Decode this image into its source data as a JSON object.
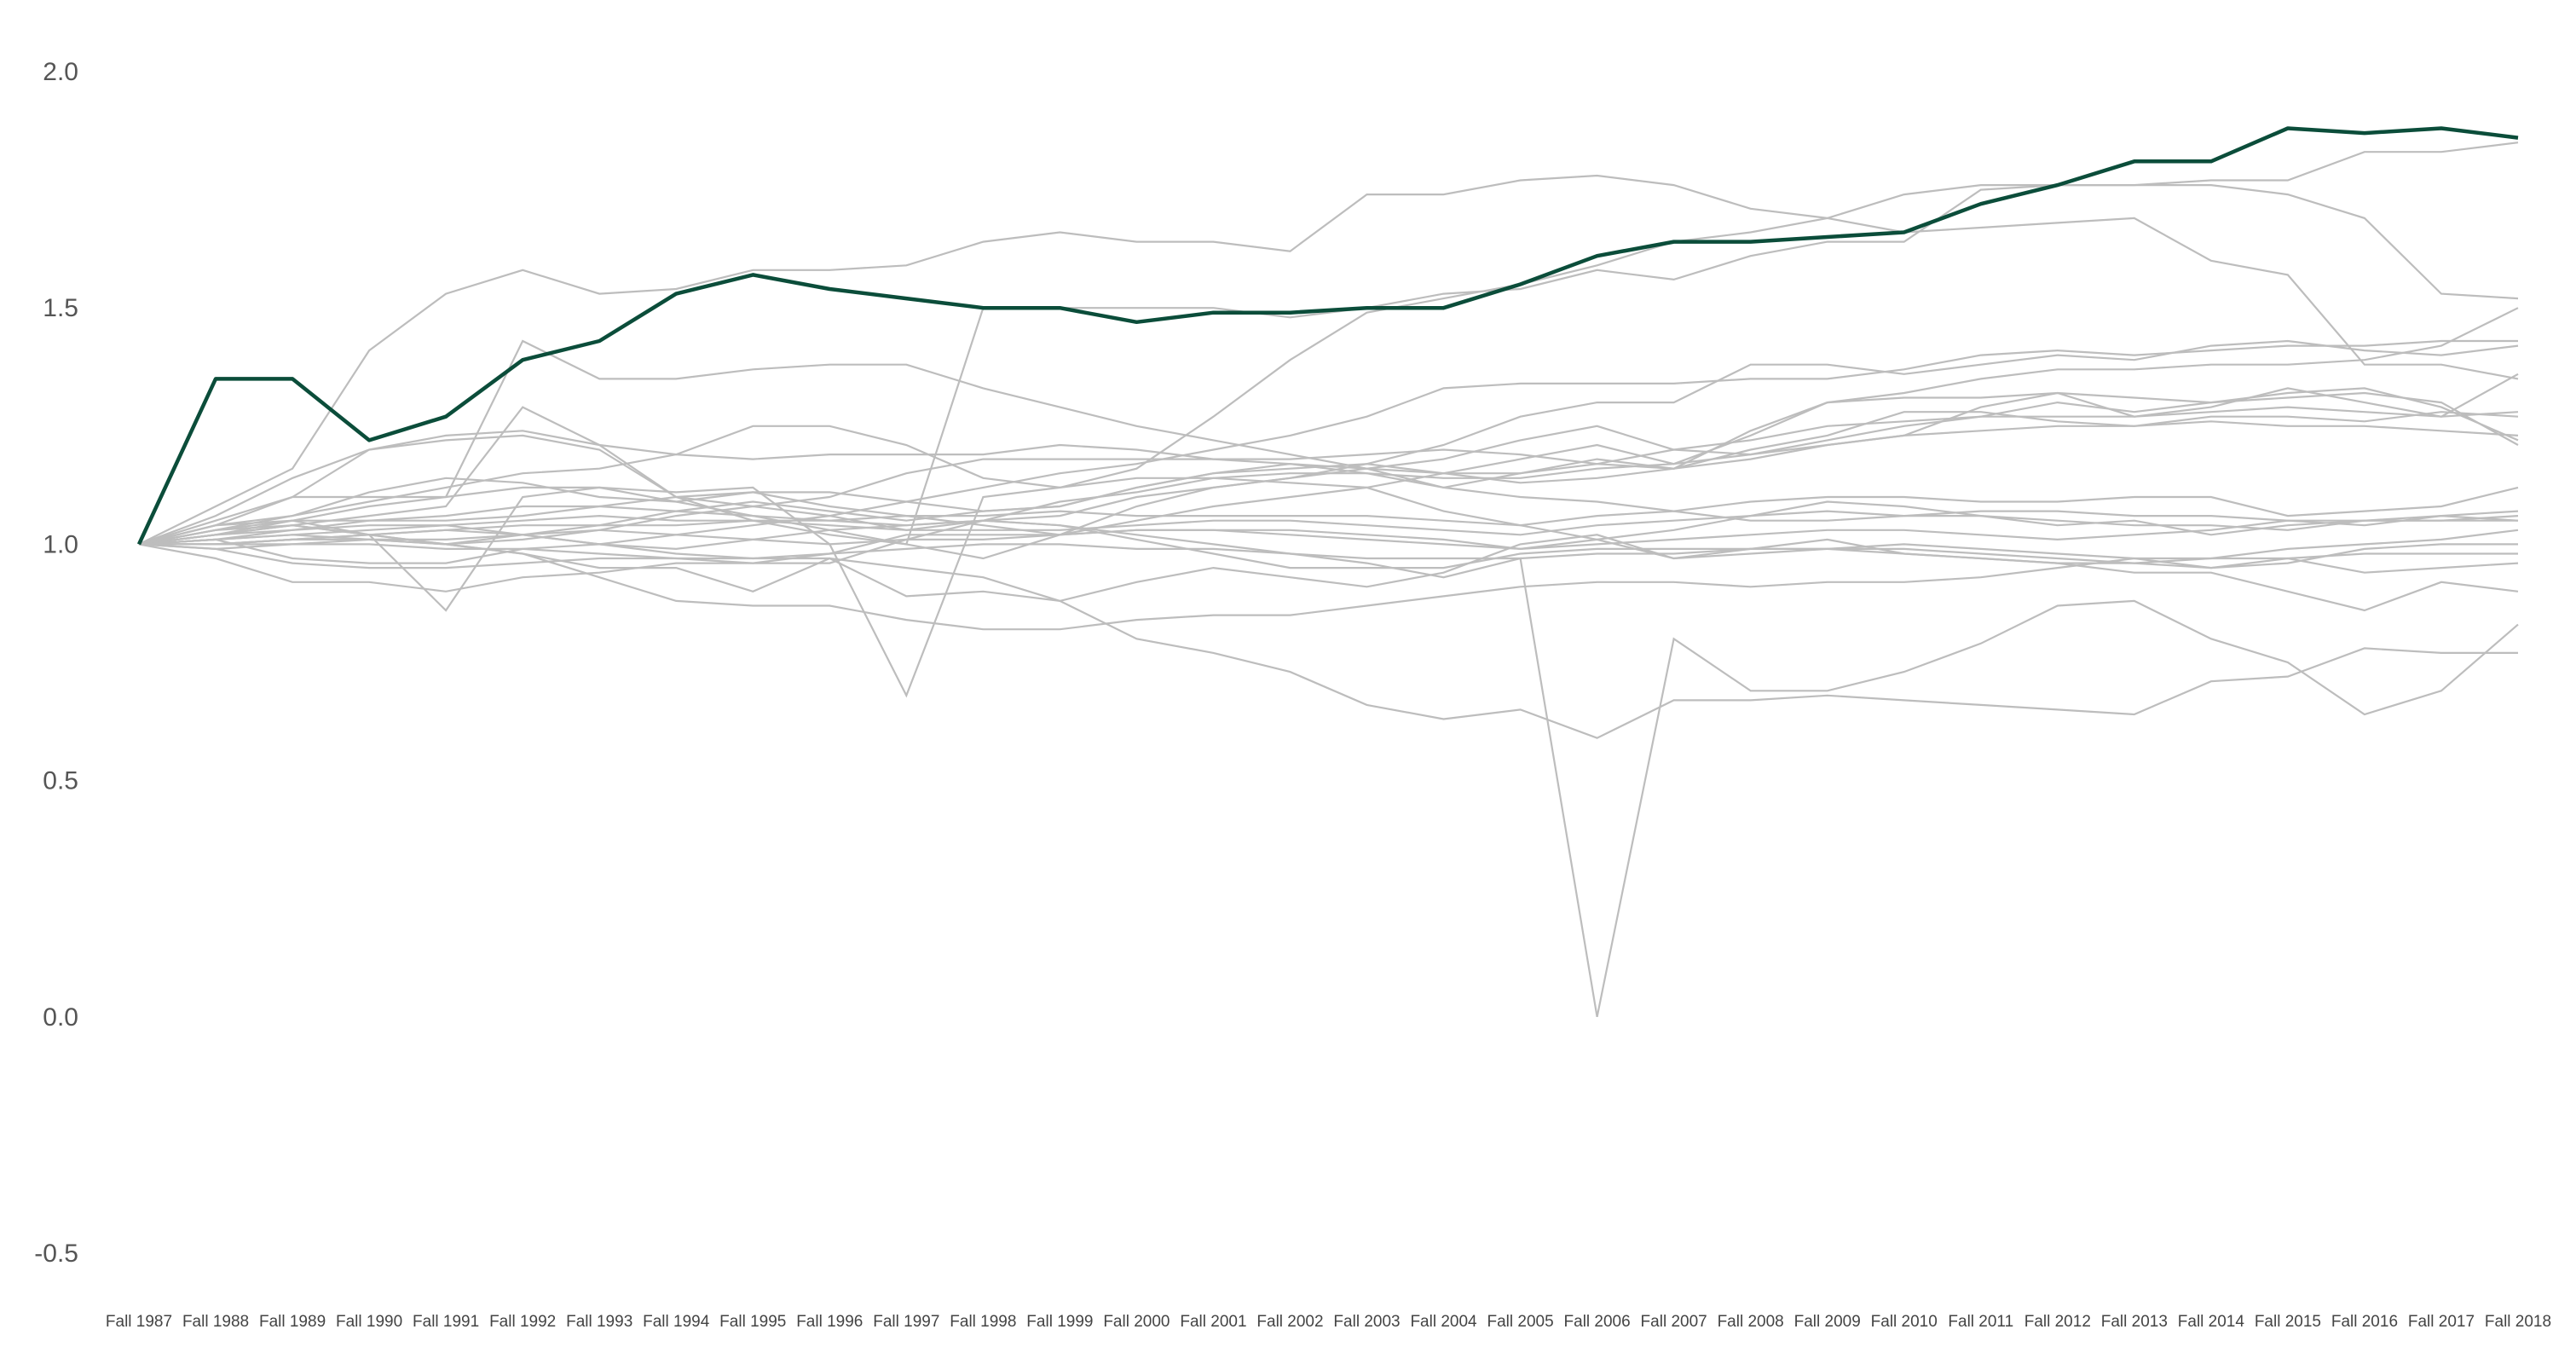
{
  "chart_data": {
    "type": "line",
    "title": "",
    "xlabel": "",
    "ylabel": "",
    "ylim": [
      -0.5,
      2.0
    ],
    "yticks": [
      "-0.5",
      "0.0",
      "0.5",
      "1.0",
      "1.5",
      "2.0"
    ],
    "grid": false,
    "legend": "none",
    "categories": [
      "Fall 1987",
      "Fall 1988",
      "Fall 1989",
      "Fall 1990",
      "Fall 1991",
      "Fall 1992",
      "Fall 1993",
      "Fall 1994",
      "Fall 1995",
      "Fall 1996",
      "Fall 1997",
      "Fall 1998",
      "Fall 1999",
      "Fall 2000",
      "Fall 2001",
      "Fall 2002",
      "Fall 2003",
      "Fall 2004",
      "Fall 2005",
      "Fall 2006",
      "Fall 2007",
      "Fall 2008",
      "Fall 2009",
      "Fall 2010",
      "Fall 2011",
      "Fall 2012",
      "Fall 2013",
      "Fall 2014",
      "Fall 2015",
      "Fall 2016",
      "Fall 2017",
      "Fall 2018"
    ],
    "highlight_color": "#0b4d3a",
    "background_color": "#bdbdbd",
    "highlight": {
      "values": [
        1.0,
        1.35,
        1.35,
        1.22,
        1.27,
        1.39,
        1.43,
        1.53,
        1.57,
        1.54,
        1.52,
        1.5,
        1.5,
        1.47,
        1.49,
        1.49,
        1.5,
        1.5,
        1.55,
        1.61,
        1.64,
        1.64,
        1.65,
        1.66,
        1.72,
        1.76,
        1.81,
        1.81,
        1.88,
        1.87,
        1.88,
        1.86
      ]
    },
    "series": [
      {
        "values": [
          1.0,
          1.08,
          1.16,
          1.41,
          1.53,
          1.58,
          1.53,
          1.54,
          1.58,
          1.58,
          1.59,
          1.64,
          1.66,
          1.64,
          1.64,
          1.62,
          1.74,
          1.74,
          1.77,
          1.78,
          1.76,
          1.71,
          1.69,
          1.66,
          1.67,
          1.68,
          1.69,
          1.6,
          1.57,
          1.38,
          1.38,
          1.35
        ]
      },
      {
        "values": [
          1.0,
          1.06,
          1.14,
          1.2,
          1.23,
          1.24,
          1.21,
          1.19,
          1.25,
          1.25,
          1.21,
          1.14,
          1.12,
          1.16,
          1.27,
          1.39,
          1.49,
          1.52,
          1.55,
          1.59,
          1.64,
          1.66,
          1.69,
          1.74,
          1.76,
          1.76,
          1.76,
          1.76,
          1.74,
          1.69,
          1.53,
          1.52
        ]
      },
      {
        "values": [
          1.0,
          1.04,
          1.1,
          1.2,
          1.22,
          1.23,
          1.2,
          1.1,
          1.05,
          1.02,
          1.0,
          1.5,
          1.5,
          1.5,
          1.5,
          1.48,
          1.5,
          1.53,
          1.54,
          1.58,
          1.56,
          1.61,
          1.64,
          1.64,
          1.75,
          1.76,
          1.76,
          1.77,
          1.77,
          1.83,
          1.83,
          1.85
        ]
      },
      {
        "values": [
          1.0,
          1.05,
          1.1,
          1.1,
          1.1,
          1.43,
          1.35,
          1.35,
          1.37,
          1.38,
          1.38,
          1.33,
          1.29,
          1.25,
          1.22,
          1.19,
          1.16,
          1.12,
          1.1,
          1.09,
          1.07,
          1.05,
          1.05,
          1.06,
          1.07,
          1.07,
          1.06,
          1.06,
          1.05,
          1.05,
          1.05,
          1.06
        ]
      },
      {
        "values": [
          1.0,
          1.03,
          1.06,
          1.09,
          1.12,
          1.15,
          1.16,
          1.19,
          1.18,
          1.19,
          1.19,
          1.19,
          1.21,
          1.2,
          1.18,
          1.17,
          1.16,
          1.15,
          1.15,
          1.17,
          1.2,
          1.22,
          1.25,
          1.26,
          1.27,
          1.27,
          1.27,
          1.28,
          1.29,
          1.28,
          1.27,
          1.28
        ]
      },
      {
        "values": [
          1.0,
          1.02,
          1.04,
          1.06,
          1.08,
          1.29,
          1.21,
          1.1,
          1.08,
          1.1,
          1.15,
          1.18,
          1.18,
          1.18,
          1.18,
          1.18,
          1.19,
          1.2,
          1.19,
          1.17,
          1.16,
          1.24,
          1.3,
          1.32,
          1.35,
          1.37,
          1.37,
          1.38,
          1.38,
          1.39,
          1.42,
          1.5
        ]
      },
      {
        "values": [
          1.0,
          1.01,
          0.97,
          0.96,
          0.96,
          0.99,
          1.0,
          1.02,
          1.04,
          1.06,
          1.09,
          1.12,
          1.15,
          1.17,
          1.2,
          1.23,
          1.27,
          1.33,
          1.34,
          1.34,
          1.34,
          1.35,
          1.35,
          1.37,
          1.4,
          1.41,
          1.4,
          1.41,
          1.42,
          1.42,
          1.43,
          1.43
        ]
      },
      {
        "values": [
          1.0,
          1.02,
          1.05,
          1.08,
          1.1,
          1.12,
          1.12,
          1.09,
          1.06,
          1.03,
          1.0,
          0.97,
          1.02,
          1.08,
          1.12,
          1.14,
          1.17,
          1.21,
          1.27,
          1.3,
          1.3,
          1.38,
          1.38,
          1.36,
          1.38,
          1.4,
          1.39,
          1.42,
          1.43,
          1.41,
          1.4,
          1.42
        ]
      },
      {
        "values": [
          1.0,
          1.02,
          1.03,
          1.05,
          1.06,
          1.08,
          1.08,
          1.07,
          1.06,
          1.05,
          1.04,
          1.05,
          1.06,
          1.1,
          1.12,
          1.14,
          1.16,
          1.18,
          1.22,
          1.25,
          1.2,
          1.19,
          1.22,
          1.25,
          1.27,
          1.3,
          1.28,
          1.3,
          1.32,
          1.33,
          1.29,
          1.22
        ]
      },
      {
        "values": [
          1.0,
          1.03,
          1.04,
          1.02,
          1.0,
          1.01,
          1.03,
          1.06,
          1.08,
          1.06,
          1.03,
          1.05,
          1.09,
          1.11,
          1.14,
          1.15,
          1.15,
          1.14,
          1.14,
          1.16,
          1.17,
          1.19,
          1.21,
          1.23,
          1.29,
          1.32,
          1.27,
          1.29,
          1.33,
          1.3,
          1.27,
          1.36
        ]
      },
      {
        "values": [
          1.0,
          1.01,
          1.02,
          1.01,
          1.0,
          1.02,
          1.04,
          1.07,
          1.09,
          1.07,
          1.05,
          1.07,
          1.08,
          1.12,
          1.15,
          1.17,
          1.15,
          1.12,
          1.15,
          1.18,
          1.16,
          1.2,
          1.23,
          1.28,
          1.28,
          1.26,
          1.25,
          1.27,
          1.27,
          1.26,
          1.28,
          1.27
        ]
      },
      {
        "values": [
          1.0,
          1.03,
          1.05,
          1.05,
          1.05,
          1.06,
          1.08,
          1.1,
          1.11,
          1.11,
          1.09,
          1.07,
          1.08,
          1.12,
          1.15,
          1.16,
          1.17,
          1.15,
          1.13,
          1.14,
          1.16,
          1.18,
          1.21,
          1.23,
          1.24,
          1.25,
          1.25,
          1.26,
          1.25,
          1.25,
          1.24,
          1.23
        ]
      },
      {
        "values": [
          1.0,
          1.04,
          1.06,
          1.11,
          1.14,
          1.13,
          1.1,
          1.09,
          1.11,
          1.08,
          1.06,
          1.04,
          1.02,
          1.05,
          1.08,
          1.1,
          1.12,
          1.15,
          1.18,
          1.21,
          1.17,
          1.23,
          1.3,
          1.31,
          1.31,
          1.32,
          1.31,
          1.3,
          1.31,
          1.32,
          1.3,
          1.21
        ]
      },
      {
        "values": [
          1.0,
          1.01,
          1.03,
          1.04,
          1.04,
          1.05,
          1.06,
          1.05,
          1.05,
          1.05,
          1.06,
          1.06,
          1.07,
          1.06,
          1.06,
          1.06,
          1.06,
          1.05,
          1.04,
          1.06,
          1.07,
          1.09,
          1.1,
          1.1,
          1.09,
          1.09,
          1.1,
          1.1,
          1.06,
          1.07,
          1.08,
          1.12
        ]
      },
      {
        "values": [
          1.0,
          1.0,
          1.01,
          1.02,
          1.03,
          1.04,
          1.04,
          1.04,
          1.05,
          1.04,
          1.03,
          1.03,
          1.03,
          1.04,
          1.05,
          1.05,
          1.04,
          1.03,
          1.02,
          1.04,
          1.05,
          1.06,
          1.07,
          1.06,
          1.06,
          1.05,
          1.04,
          1.04,
          1.03,
          1.05,
          1.06,
          1.05
        ]
      },
      {
        "values": [
          1.0,
          0.99,
          1.0,
          1.01,
          1.01,
          1.02,
          1.03,
          1.02,
          1.01,
          1.0,
          1.01,
          1.01,
          1.02,
          1.03,
          1.03,
          1.02,
          1.01,
          1.0,
          0.99,
          1.0,
          1.01,
          1.02,
          1.03,
          1.03,
          1.02,
          1.01,
          1.02,
          1.03,
          1.05,
          1.04,
          1.06,
          1.07
        ]
      },
      {
        "values": [
          1.0,
          1.0,
          1.0,
          1.0,
          0.99,
          0.99,
          0.98,
          0.97,
          0.97,
          0.98,
          0.99,
          1.0,
          1.0,
          0.99,
          0.99,
          0.98,
          0.97,
          0.97,
          0.97,
          0.98,
          0.98,
          0.99,
          0.99,
          0.98,
          0.97,
          0.96,
          0.96,
          0.97,
          0.99,
          1.0,
          1.01,
          1.03
        ]
      },
      {
        "values": [
          1.0,
          0.97,
          0.92,
          0.92,
          0.9,
          0.93,
          0.94,
          0.96,
          0.96,
          0.96,
          1.01,
          1.05,
          1.04,
          1.01,
          0.98,
          0.95,
          0.95,
          0.95,
          0.98,
          0.99,
          0.99,
          0.99,
          0.99,
          1.0,
          0.99,
          0.98,
          0.97,
          0.97,
          0.97,
          0.98,
          0.98,
          0.98
        ]
      },
      {
        "values": [
          1.0,
          0.99,
          0.96,
          0.95,
          0.95,
          0.96,
          0.97,
          0.97,
          0.96,
          0.98,
          1.02,
          1.02,
          1.02,
          1.03,
          1.03,
          1.03,
          1.02,
          1.01,
          0.99,
          1.01,
          0.97,
          0.98,
          0.99,
          0.99,
          0.98,
          0.97,
          0.96,
          0.95,
          0.97,
          0.94,
          0.95,
          0.96
        ]
      },
      {
        "values": [
          1.0,
          1.02,
          1.04,
          1.02,
          1.0,
          0.98,
          0.95,
          0.95,
          0.9,
          0.97,
          0.89,
          0.9,
          0.88,
          0.92,
          0.95,
          0.93,
          0.91,
          0.94,
          1.0,
          1.02,
          0.97,
          0.99,
          1.01,
          0.98,
          0.97,
          0.96,
          0.94,
          0.94,
          0.9,
          0.86,
          0.92,
          0.9
        ]
      },
      {
        "values": [
          1.0,
          1.04,
          1.05,
          1.02,
          0.86,
          1.1,
          1.12,
          1.11,
          1.12,
          1.0,
          0.68,
          1.1,
          1.12,
          1.14,
          1.14,
          1.13,
          1.12,
          1.07,
          1.04,
          1.01,
          1.03,
          1.06,
          1.09,
          1.08,
          1.06,
          1.04,
          1.05,
          1.02,
          1.04,
          1.05,
          1.05,
          1.05
        ]
      },
      {
        "values": [
          1.0,
          1.0,
          1.01,
          1.01,
          1.0,
          0.98,
          0.93,
          0.88,
          0.87,
          0.87,
          0.84,
          0.82,
          0.82,
          0.84,
          0.85,
          0.85,
          0.87,
          0.89,
          0.91,
          0.92,
          0.92,
          0.91,
          0.92,
          0.92,
          0.93,
          0.95,
          0.97,
          0.95,
          0.96,
          0.99,
          1.0,
          1.0
        ]
      },
      {
        "values": [
          1.0,
          1.0,
          1.01,
          1.02,
          1.03,
          1.02,
          1.0,
          0.98,
          0.97,
          0.97,
          0.95,
          0.93,
          0.88,
          0.8,
          0.77,
          0.73,
          0.66,
          0.63,
          0.65,
          0.59,
          0.67,
          0.67,
          0.68,
          0.67,
          0.66,
          0.65,
          0.64,
          0.71,
          0.72,
          0.78,
          0.77,
          0.77
        ]
      },
      {
        "values": [
          1.0,
          1.01,
          1.02,
          1.03,
          1.04,
          1.02,
          1.0,
          0.99,
          1.01,
          1.03,
          1.04,
          1.05,
          1.04,
          1.02,
          1.0,
          0.98,
          0.96,
          0.93,
          0.97,
          0.0,
          0.8,
          0.69,
          0.69,
          0.73,
          0.79,
          0.87,
          0.88,
          0.8,
          0.75,
          0.64,
          0.69,
          0.83
        ]
      }
    ]
  }
}
